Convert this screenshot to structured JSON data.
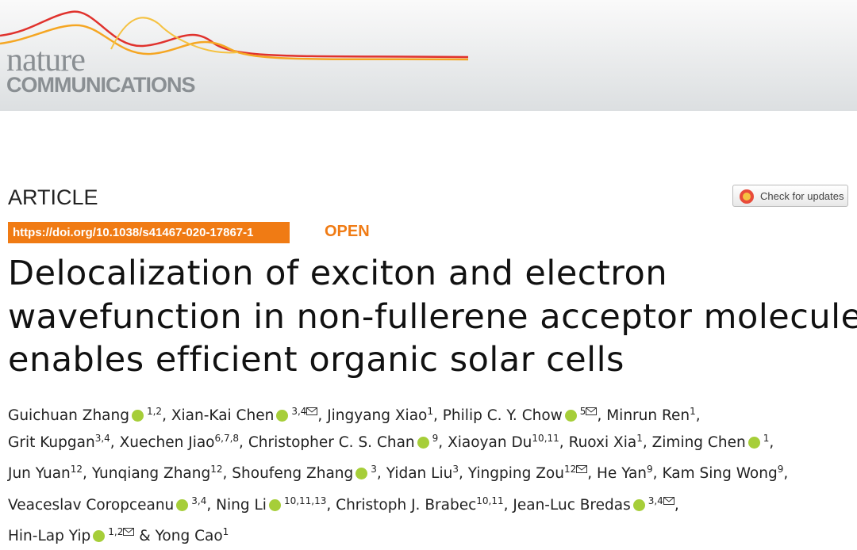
{
  "header": {
    "logo_top": "nature",
    "logo_bottom": "COMMUNICATIONS"
  },
  "article_type": "ARTICLE",
  "check_updates": "Check for updates",
  "doi": "https://doi.org/10.1038/s41467-020-17867-1",
  "access": "OPEN",
  "title_lines": [
    "Delocalization of exciton and electron",
    "wavefunction in non-fullerene acceptor molecules",
    "enables efficient organic solar cells"
  ],
  "author_separator": ",",
  "final_separator": "&",
  "authors": [
    {
      "name": "Guichuan Zhang",
      "orcid": true,
      "affiliations": "1,2",
      "corresponding": false
    },
    {
      "name": "Xian-Kai Chen",
      "orcid": true,
      "affiliations": "3,4",
      "corresponding": true
    },
    {
      "name": "Jingyang Xiao",
      "orcid": false,
      "affiliations": "1",
      "corresponding": false
    },
    {
      "name": "Philip C. Y. Chow",
      "orcid": true,
      "affiliations": "5",
      "corresponding": true
    },
    {
      "name": "Minrun Ren",
      "orcid": false,
      "affiliations": "1",
      "corresponding": false
    },
    {
      "name": "Grit Kupgan",
      "orcid": false,
      "affiliations": "3,4",
      "corresponding": false
    },
    {
      "name": "Xuechen Jiao",
      "orcid": false,
      "affiliations": "6,7,8",
      "corresponding": false
    },
    {
      "name": "Christopher C. S. Chan",
      "orcid": true,
      "affiliations": "9",
      "corresponding": false
    },
    {
      "name": "Xiaoyan Du",
      "orcid": false,
      "affiliations": "10,11",
      "corresponding": false
    },
    {
      "name": "Ruoxi Xia",
      "orcid": false,
      "affiliations": "1",
      "corresponding": false
    },
    {
      "name": "Ziming Chen",
      "orcid": true,
      "affiliations": "1",
      "corresponding": false
    },
    {
      "name": "Jun Yuan",
      "orcid": false,
      "affiliations": "12",
      "corresponding": false
    },
    {
      "name": "Yunqiang Zhang",
      "orcid": false,
      "affiliations": "12",
      "corresponding": false
    },
    {
      "name": "Shoufeng Zhang",
      "orcid": true,
      "affiliations": "3",
      "corresponding": false
    },
    {
      "name": "Yidan Liu",
      "orcid": false,
      "affiliations": "3",
      "corresponding": false
    },
    {
      "name": "Yingping Zou",
      "orcid": false,
      "affiliations": "12",
      "corresponding": true
    },
    {
      "name": "He Yan",
      "orcid": false,
      "affiliations": "9",
      "corresponding": false
    },
    {
      "name": "Kam Sing Wong",
      "orcid": false,
      "affiliations": "9",
      "corresponding": false
    },
    {
      "name": "Veaceslav Coropceanu",
      "orcid": true,
      "affiliations": "3,4",
      "corresponding": false
    },
    {
      "name": "Ning Li",
      "orcid": true,
      "affiliations": "10,11,13",
      "corresponding": false
    },
    {
      "name": "Christoph J. Brabec",
      "orcid": false,
      "affiliations": "10,11",
      "corresponding": false
    },
    {
      "name": "Jean-Luc Bredas",
      "orcid": true,
      "affiliations": "3,4",
      "corresponding": true
    },
    {
      "name": "Hin-Lap Yip",
      "orcid": true,
      "affiliations": "1,2",
      "corresponding": true
    },
    {
      "name": "Yong Cao",
      "orcid": false,
      "affiliations": "1",
      "corresponding": false
    }
  ]
}
